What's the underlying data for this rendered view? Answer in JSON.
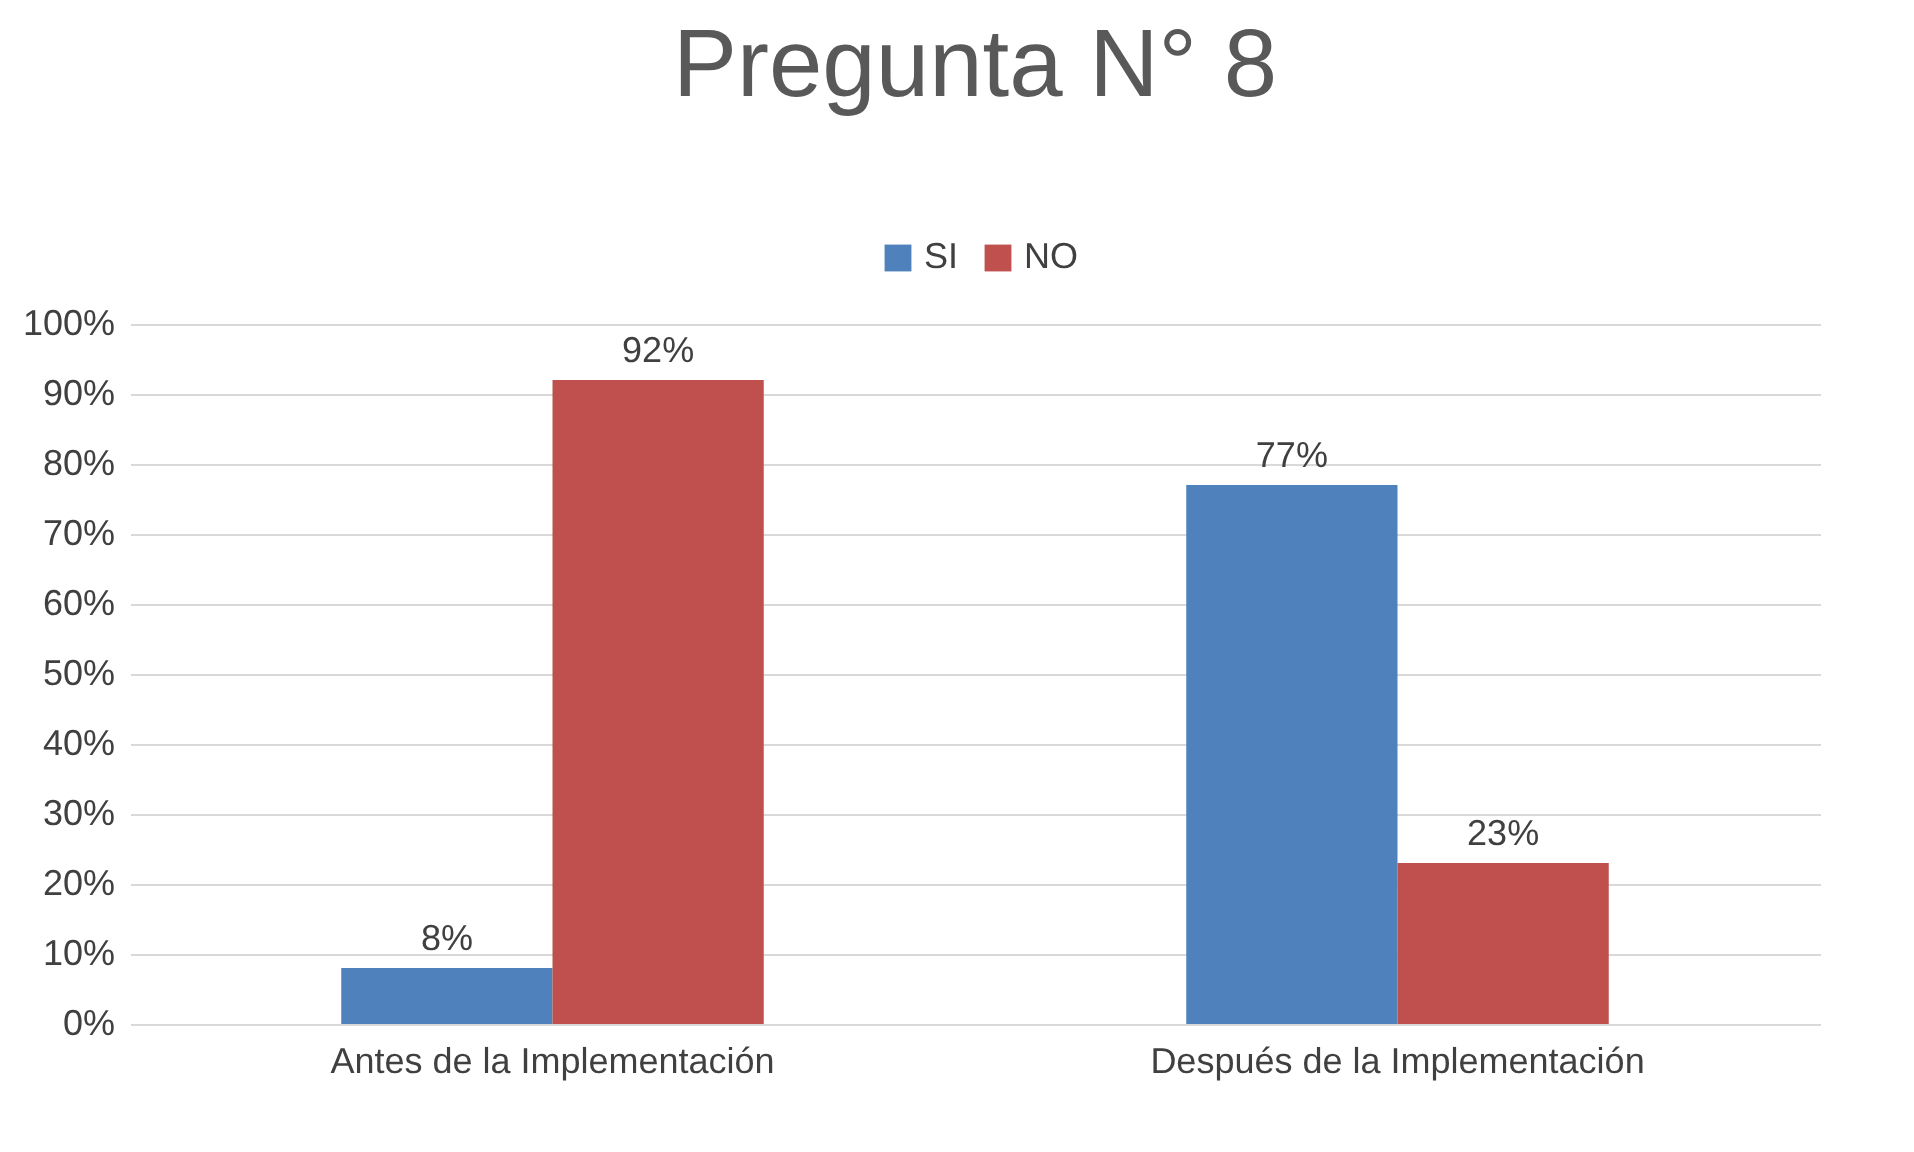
{
  "chart_data": {
    "type": "bar",
    "title": "Pregunta N° 8",
    "categories": [
      "Antes de la Implementación",
      "Después de la Implementación"
    ],
    "series": [
      {
        "name": "SI",
        "color": "#4f81bd",
        "values": [
          8,
          77
        ],
        "value_labels": [
          "8%",
          "77%"
        ]
      },
      {
        "name": "NO",
        "color": "#c0504d",
        "values": [
          92,
          23
        ],
        "value_labels": [
          "92%",
          "23%"
        ]
      }
    ],
    "ylim": [
      0,
      100
    ],
    "yticks": [
      {
        "value": 0,
        "label": "0%"
      },
      {
        "value": 10,
        "label": "10%"
      },
      {
        "value": 20,
        "label": "20%"
      },
      {
        "value": 30,
        "label": "30%"
      },
      {
        "value": 40,
        "label": "40%"
      },
      {
        "value": 50,
        "label": "50%"
      },
      {
        "value": 60,
        "label": "60%"
      },
      {
        "value": 70,
        "label": "70%"
      },
      {
        "value": 80,
        "label": "80%"
      },
      {
        "value": 90,
        "label": "90%"
      },
      {
        "value": 100,
        "label": "100%"
      }
    ],
    "grid": "y",
    "legend": "top"
  }
}
